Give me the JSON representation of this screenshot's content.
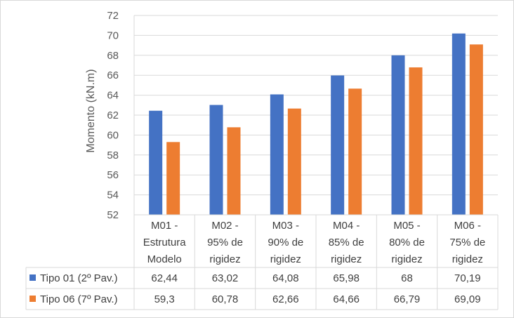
{
  "chart_data": {
    "type": "bar",
    "ylabel": "Momento (kN.m)",
    "ylim": [
      52,
      72
    ],
    "y_ticks": [
      "52",
      "54",
      "56",
      "58",
      "60",
      "62",
      "64",
      "66",
      "68",
      "70",
      "72"
    ],
    "grid": true,
    "legend": "data-table",
    "categories": [
      [
        "M01 -",
        "Estrutura",
        "Modelo"
      ],
      [
        "M02 -",
        "95% de",
        "rigidez"
      ],
      [
        "M03 -",
        "90% de",
        "rigidez"
      ],
      [
        "M04 -",
        "85% de",
        "rigidez"
      ],
      [
        "M05 -",
        "80% de",
        "rigidez"
      ],
      [
        "M06 -",
        "75% de",
        "rigidez"
      ]
    ],
    "series": [
      {
        "name": "Tipo 01 (2º Pav.)",
        "color": "#4472c4",
        "values": [
          62.44,
          63.02,
          64.08,
          65.98,
          68,
          70.19
        ],
        "labels": [
          "62,44",
          "63,02",
          "64,08",
          "65,98",
          "68",
          "70,19"
        ]
      },
      {
        "name": "Tipo 06 (7º Pav.)",
        "color": "#ed7d31",
        "values": [
          59.3,
          60.78,
          62.66,
          64.66,
          66.79,
          69.09
        ],
        "labels": [
          "59,3",
          "60,78",
          "62,66",
          "64,66",
          "66,79",
          "69,09"
        ]
      }
    ]
  }
}
